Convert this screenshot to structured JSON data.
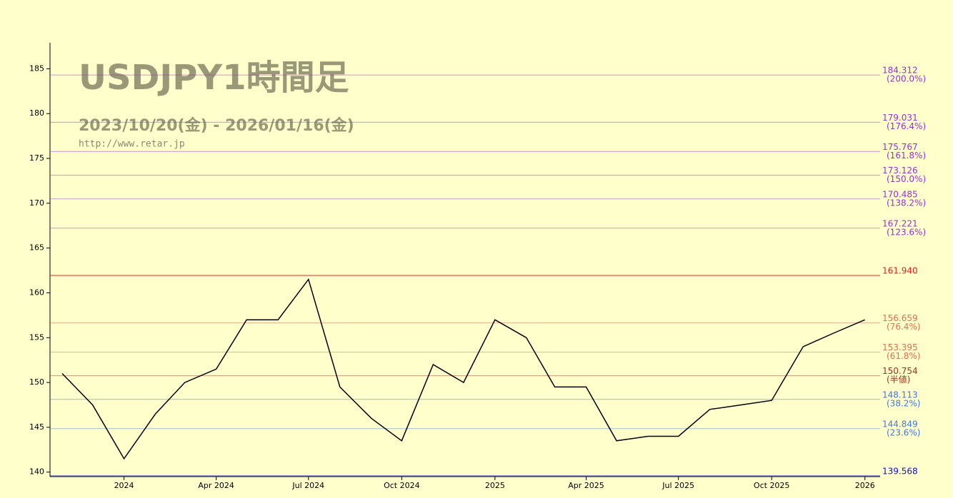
{
  "chart_data": {
    "type": "line",
    "title": "USDJPY1時間足",
    "subtitle": "2023/10/20(金) - 2026/01/16(金)",
    "source": "http://www.retar.jp",
    "xlim": [
      "2023-10-20",
      "2026-01-16"
    ],
    "xticks": [
      {
        "value": "2024-01",
        "label": "2024"
      },
      {
        "value": "2024-04",
        "label": "Apr 2024"
      },
      {
        "value": "2024-07",
        "label": "Jul 2024"
      },
      {
        "value": "2024-10",
        "label": "Oct 2024"
      },
      {
        "value": "2025-01",
        "label": "2025"
      },
      {
        "value": "2025-04",
        "label": "Apr 2025"
      },
      {
        "value": "2025-07",
        "label": "Jul 2025"
      },
      {
        "value": "2025-10",
        "label": "Oct 2025"
      },
      {
        "value": "2026-01",
        "label": "2026"
      }
    ],
    "ylim": [
      139.5,
      187.9
    ],
    "yticks": [
      140,
      145,
      150,
      155,
      160,
      165,
      170,
      175,
      180,
      185
    ],
    "series": [
      {
        "name": "USDJPY",
        "color": "#000000",
        "x": [
          "2023-11",
          "2023-12",
          "2024-01",
          "2024-02",
          "2024-03",
          "2024-04",
          "2024-05",
          "2024-06",
          "2024-07",
          "2024-08",
          "2024-09",
          "2024-10",
          "2024-11",
          "2024-12",
          "2025-01",
          "2025-02",
          "2025-03",
          "2025-04",
          "2025-05",
          "2025-06",
          "2025-07",
          "2025-08",
          "2025-09",
          "2025-10",
          "2025-11",
          "2025-12",
          "2026-01"
        ],
        "values": [
          151.0,
          147.5,
          141.5,
          146.5,
          150.0,
          151.5,
          157.0,
          157.0,
          161.5,
          149.5,
          146.0,
          143.5,
          152.0,
          150.0,
          157.0,
          155.0,
          149.5,
          149.5,
          143.5,
          144.0,
          144.0,
          147.0,
          147.5,
          148.0,
          154.0,
          155.5,
          157.0
        ]
      }
    ],
    "levels": [
      {
        "value": 184.312,
        "label": "184.312",
        "note": "(200.0%)",
        "color": "#9933cc"
      },
      {
        "value": 179.031,
        "label": "179.031",
        "note": "(176.4%)",
        "color": "#9933cc"
      },
      {
        "value": 175.767,
        "label": "175.767",
        "note": "(161.8%)",
        "color": "#9933cc"
      },
      {
        "value": 173.126,
        "label": "173.126",
        "note": "(150.0%)",
        "color": "#9933cc"
      },
      {
        "value": 170.485,
        "label": "170.485",
        "note": "(138.2%)",
        "color": "#9933cc"
      },
      {
        "value": 167.221,
        "label": "167.221",
        "note": "(123.6%)",
        "color": "#9933cc"
      },
      {
        "value": 161.94,
        "label": "161.940",
        "color": "#dd2222"
      },
      {
        "value": 156.659,
        "label": "156.659",
        "note": "(76.4%)",
        "color": "#e07050"
      },
      {
        "value": 153.395,
        "label": "153.395",
        "note": "(61.8%)",
        "color": "#e07050"
      },
      {
        "value": 150.754,
        "label": "150.754",
        "note": "(半値)",
        "color": "#993322"
      },
      {
        "value": 148.113,
        "label": "148.113",
        "note": "(38.2%)",
        "color": "#4477dd"
      },
      {
        "value": 144.849,
        "label": "144.849",
        "note": "(23.6%)",
        "color": "#4477dd"
      },
      {
        "value": 139.568,
        "label": "139.568",
        "color": "#1111cc"
      }
    ]
  }
}
